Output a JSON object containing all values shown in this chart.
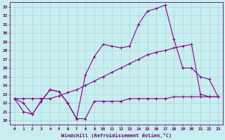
{
  "xlabel": "Windchill (Refroidissement éolien,°C)",
  "background_color": "#c8eef0",
  "grid_color": "#b0d8da",
  "line_color": "#880088",
  "ylim": [
    19.5,
    33.5
  ],
  "xlim": [
    -0.5,
    23.5
  ],
  "yticks": [
    20,
    21,
    22,
    23,
    24,
    25,
    26,
    27,
    28,
    29,
    30,
    31,
    32,
    33
  ],
  "xticks": [
    0,
    1,
    2,
    3,
    4,
    5,
    6,
    7,
    8,
    9,
    10,
    11,
    12,
    13,
    14,
    15,
    16,
    17,
    18,
    19,
    20,
    21,
    22,
    23
  ],
  "line1_x": [
    0,
    1,
    2,
    3,
    4,
    5,
    6,
    7,
    8,
    9,
    10,
    11,
    12,
    13,
    14,
    15,
    16,
    17,
    18,
    19,
    20,
    21,
    22,
    23
  ],
  "line1_y": [
    22.5,
    22.5,
    22.5,
    22.5,
    22.5,
    22.8,
    23.2,
    23.5,
    24.0,
    24.5,
    25.0,
    25.5,
    26.0,
    26.5,
    27.0,
    27.5,
    27.8,
    28.0,
    28.3,
    28.5,
    28.7,
    23.0,
    22.7,
    22.7
  ],
  "line2_x": [
    0,
    1,
    2,
    3,
    4,
    5,
    6,
    7,
    8,
    9,
    10,
    11,
    12,
    13,
    14,
    15,
    16,
    17,
    18,
    19,
    20,
    21,
    22,
    23
  ],
  "line2_y": [
    22.5,
    21.0,
    20.7,
    22.2,
    23.5,
    23.3,
    22.0,
    20.2,
    20.2,
    22.2,
    22.2,
    22.2,
    22.2,
    22.5,
    22.5,
    22.5,
    22.5,
    22.5,
    22.7,
    22.7,
    22.7,
    22.7,
    22.7,
    22.7
  ],
  "line3_x": [
    0,
    1,
    2,
    3,
    4,
    5,
    6,
    7,
    8,
    9,
    10,
    11,
    12,
    13,
    14,
    15,
    16,
    17,
    18,
    19,
    20,
    21,
    22,
    23
  ],
  "line3_y": [
    22.5,
    22.0,
    20.7,
    22.2,
    23.5,
    23.3,
    22.0,
    20.2,
    25.2,
    27.3,
    28.7,
    28.5,
    28.3,
    28.5,
    31.0,
    32.5,
    32.8,
    33.2,
    29.3,
    26.0,
    26.0,
    25.0,
    24.7,
    22.7
  ]
}
